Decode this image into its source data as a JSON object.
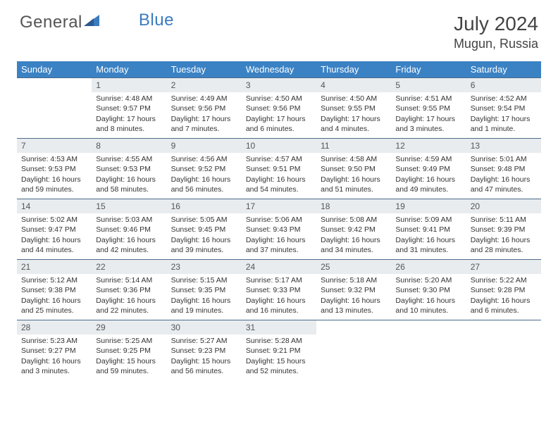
{
  "brand": {
    "part1": "General",
    "part2": "Blue"
  },
  "title": "July 2024",
  "location": "Mugun, Russia",
  "colors": {
    "header_bg": "#3b82c4",
    "header_text": "#ffffff",
    "daynum_bg": "#e8ecef",
    "border": "#4a6a8a",
    "logo_blue": "#3b7bbf",
    "text": "#333333"
  },
  "weekdays": [
    "Sunday",
    "Monday",
    "Tuesday",
    "Wednesday",
    "Thursday",
    "Friday",
    "Saturday"
  ],
  "weeks": [
    [
      {
        "n": "",
        "sr": "",
        "ss": "",
        "dl": ""
      },
      {
        "n": "1",
        "sr": "Sunrise: 4:48 AM",
        "ss": "Sunset: 9:57 PM",
        "dl": "Daylight: 17 hours and 8 minutes."
      },
      {
        "n": "2",
        "sr": "Sunrise: 4:49 AM",
        "ss": "Sunset: 9:56 PM",
        "dl": "Daylight: 17 hours and 7 minutes."
      },
      {
        "n": "3",
        "sr": "Sunrise: 4:50 AM",
        "ss": "Sunset: 9:56 PM",
        "dl": "Daylight: 17 hours and 6 minutes."
      },
      {
        "n": "4",
        "sr": "Sunrise: 4:50 AM",
        "ss": "Sunset: 9:55 PM",
        "dl": "Daylight: 17 hours and 4 minutes."
      },
      {
        "n": "5",
        "sr": "Sunrise: 4:51 AM",
        "ss": "Sunset: 9:55 PM",
        "dl": "Daylight: 17 hours and 3 minutes."
      },
      {
        "n": "6",
        "sr": "Sunrise: 4:52 AM",
        "ss": "Sunset: 9:54 PM",
        "dl": "Daylight: 17 hours and 1 minute."
      }
    ],
    [
      {
        "n": "7",
        "sr": "Sunrise: 4:53 AM",
        "ss": "Sunset: 9:53 PM",
        "dl": "Daylight: 16 hours and 59 minutes."
      },
      {
        "n": "8",
        "sr": "Sunrise: 4:55 AM",
        "ss": "Sunset: 9:53 PM",
        "dl": "Daylight: 16 hours and 58 minutes."
      },
      {
        "n": "9",
        "sr": "Sunrise: 4:56 AM",
        "ss": "Sunset: 9:52 PM",
        "dl": "Daylight: 16 hours and 56 minutes."
      },
      {
        "n": "10",
        "sr": "Sunrise: 4:57 AM",
        "ss": "Sunset: 9:51 PM",
        "dl": "Daylight: 16 hours and 54 minutes."
      },
      {
        "n": "11",
        "sr": "Sunrise: 4:58 AM",
        "ss": "Sunset: 9:50 PM",
        "dl": "Daylight: 16 hours and 51 minutes."
      },
      {
        "n": "12",
        "sr": "Sunrise: 4:59 AM",
        "ss": "Sunset: 9:49 PM",
        "dl": "Daylight: 16 hours and 49 minutes."
      },
      {
        "n": "13",
        "sr": "Sunrise: 5:01 AM",
        "ss": "Sunset: 9:48 PM",
        "dl": "Daylight: 16 hours and 47 minutes."
      }
    ],
    [
      {
        "n": "14",
        "sr": "Sunrise: 5:02 AM",
        "ss": "Sunset: 9:47 PM",
        "dl": "Daylight: 16 hours and 44 minutes."
      },
      {
        "n": "15",
        "sr": "Sunrise: 5:03 AM",
        "ss": "Sunset: 9:46 PM",
        "dl": "Daylight: 16 hours and 42 minutes."
      },
      {
        "n": "16",
        "sr": "Sunrise: 5:05 AM",
        "ss": "Sunset: 9:45 PM",
        "dl": "Daylight: 16 hours and 39 minutes."
      },
      {
        "n": "17",
        "sr": "Sunrise: 5:06 AM",
        "ss": "Sunset: 9:43 PM",
        "dl": "Daylight: 16 hours and 37 minutes."
      },
      {
        "n": "18",
        "sr": "Sunrise: 5:08 AM",
        "ss": "Sunset: 9:42 PM",
        "dl": "Daylight: 16 hours and 34 minutes."
      },
      {
        "n": "19",
        "sr": "Sunrise: 5:09 AM",
        "ss": "Sunset: 9:41 PM",
        "dl": "Daylight: 16 hours and 31 minutes."
      },
      {
        "n": "20",
        "sr": "Sunrise: 5:11 AM",
        "ss": "Sunset: 9:39 PM",
        "dl": "Daylight: 16 hours and 28 minutes."
      }
    ],
    [
      {
        "n": "21",
        "sr": "Sunrise: 5:12 AM",
        "ss": "Sunset: 9:38 PM",
        "dl": "Daylight: 16 hours and 25 minutes."
      },
      {
        "n": "22",
        "sr": "Sunrise: 5:14 AM",
        "ss": "Sunset: 9:36 PM",
        "dl": "Daylight: 16 hours and 22 minutes."
      },
      {
        "n": "23",
        "sr": "Sunrise: 5:15 AM",
        "ss": "Sunset: 9:35 PM",
        "dl": "Daylight: 16 hours and 19 minutes."
      },
      {
        "n": "24",
        "sr": "Sunrise: 5:17 AM",
        "ss": "Sunset: 9:33 PM",
        "dl": "Daylight: 16 hours and 16 minutes."
      },
      {
        "n": "25",
        "sr": "Sunrise: 5:18 AM",
        "ss": "Sunset: 9:32 PM",
        "dl": "Daylight: 16 hours and 13 minutes."
      },
      {
        "n": "26",
        "sr": "Sunrise: 5:20 AM",
        "ss": "Sunset: 9:30 PM",
        "dl": "Daylight: 16 hours and 10 minutes."
      },
      {
        "n": "27",
        "sr": "Sunrise: 5:22 AM",
        "ss": "Sunset: 9:28 PM",
        "dl": "Daylight: 16 hours and 6 minutes."
      }
    ],
    [
      {
        "n": "28",
        "sr": "Sunrise: 5:23 AM",
        "ss": "Sunset: 9:27 PM",
        "dl": "Daylight: 16 hours and 3 minutes."
      },
      {
        "n": "29",
        "sr": "Sunrise: 5:25 AM",
        "ss": "Sunset: 9:25 PM",
        "dl": "Daylight: 15 hours and 59 minutes."
      },
      {
        "n": "30",
        "sr": "Sunrise: 5:27 AM",
        "ss": "Sunset: 9:23 PM",
        "dl": "Daylight: 15 hours and 56 minutes."
      },
      {
        "n": "31",
        "sr": "Sunrise: 5:28 AM",
        "ss": "Sunset: 9:21 PM",
        "dl": "Daylight: 15 hours and 52 minutes."
      },
      {
        "n": "",
        "sr": "",
        "ss": "",
        "dl": ""
      },
      {
        "n": "",
        "sr": "",
        "ss": "",
        "dl": ""
      },
      {
        "n": "",
        "sr": "",
        "ss": "",
        "dl": ""
      }
    ]
  ]
}
